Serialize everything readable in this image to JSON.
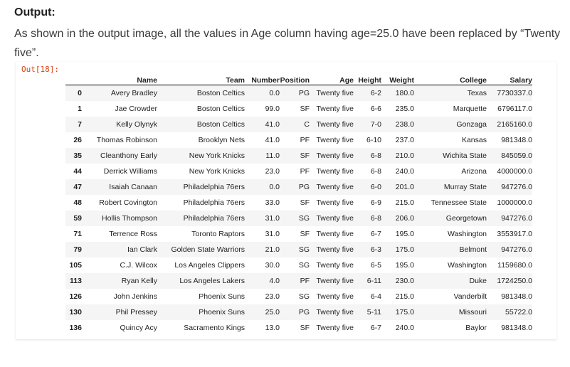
{
  "heading": "Output:",
  "description": "As shown in the output image, all the values in Age column having age=25.0 have been replaced by “Twenty five”.",
  "prompt": "Out[18]:",
  "table": {
    "columns": [
      "",
      "Name",
      "Team",
      "Number",
      "Position",
      "Age",
      "Height",
      "Weight",
      "College",
      "Salary"
    ],
    "rows": [
      [
        "0",
        "Avery Bradley",
        "Boston Celtics",
        "0.0",
        "PG",
        "Twenty five",
        "6-2",
        "180.0",
        "Texas",
        "7730337.0"
      ],
      [
        "1",
        "Jae Crowder",
        "Boston Celtics",
        "99.0",
        "SF",
        "Twenty five",
        "6-6",
        "235.0",
        "Marquette",
        "6796117.0"
      ],
      [
        "7",
        "Kelly Olynyk",
        "Boston Celtics",
        "41.0",
        "C",
        "Twenty five",
        "7-0",
        "238.0",
        "Gonzaga",
        "2165160.0"
      ],
      [
        "26",
        "Thomas Robinson",
        "Brooklyn Nets",
        "41.0",
        "PF",
        "Twenty five",
        "6-10",
        "237.0",
        "Kansas",
        "981348.0"
      ],
      [
        "35",
        "Cleanthony Early",
        "New York Knicks",
        "11.0",
        "SF",
        "Twenty five",
        "6-8",
        "210.0",
        "Wichita State",
        "845059.0"
      ],
      [
        "44",
        "Derrick Williams",
        "New York Knicks",
        "23.0",
        "PF",
        "Twenty five",
        "6-8",
        "240.0",
        "Arizona",
        "4000000.0"
      ],
      [
        "47",
        "Isaiah Canaan",
        "Philadelphia 76ers",
        "0.0",
        "PG",
        "Twenty five",
        "6-0",
        "201.0",
        "Murray State",
        "947276.0"
      ],
      [
        "48",
        "Robert Covington",
        "Philadelphia 76ers",
        "33.0",
        "SF",
        "Twenty five",
        "6-9",
        "215.0",
        "Tennessee State",
        "1000000.0"
      ],
      [
        "59",
        "Hollis Thompson",
        "Philadelphia 76ers",
        "31.0",
        "SG",
        "Twenty five",
        "6-8",
        "206.0",
        "Georgetown",
        "947276.0"
      ],
      [
        "71",
        "Terrence Ross",
        "Toronto Raptors",
        "31.0",
        "SF",
        "Twenty five",
        "6-7",
        "195.0",
        "Washington",
        "3553917.0"
      ],
      [
        "79",
        "Ian Clark",
        "Golden State Warriors",
        "21.0",
        "SG",
        "Twenty five",
        "6-3",
        "175.0",
        "Belmont",
        "947276.0"
      ],
      [
        "105",
        "C.J. Wilcox",
        "Los Angeles Clippers",
        "30.0",
        "SG",
        "Twenty five",
        "6-5",
        "195.0",
        "Washington",
        "1159680.0"
      ],
      [
        "113",
        "Ryan Kelly",
        "Los Angeles Lakers",
        "4.0",
        "PF",
        "Twenty five",
        "6-11",
        "230.0",
        "Duke",
        "1724250.0"
      ],
      [
        "126",
        "John Jenkins",
        "Phoenix Suns",
        "23.0",
        "SG",
        "Twenty five",
        "6-4",
        "215.0",
        "Vanderbilt",
        "981348.0"
      ],
      [
        "130",
        "Phil Pressey",
        "Phoenix Suns",
        "25.0",
        "PG",
        "Twenty five",
        "5-11",
        "175.0",
        "Missouri",
        "55722.0"
      ],
      [
        "136",
        "Quincy Acy",
        "Sacramento Kings",
        "13.0",
        "SF",
        "Twenty five",
        "6-7",
        "240.0",
        "Baylor",
        "981348.0"
      ]
    ]
  }
}
